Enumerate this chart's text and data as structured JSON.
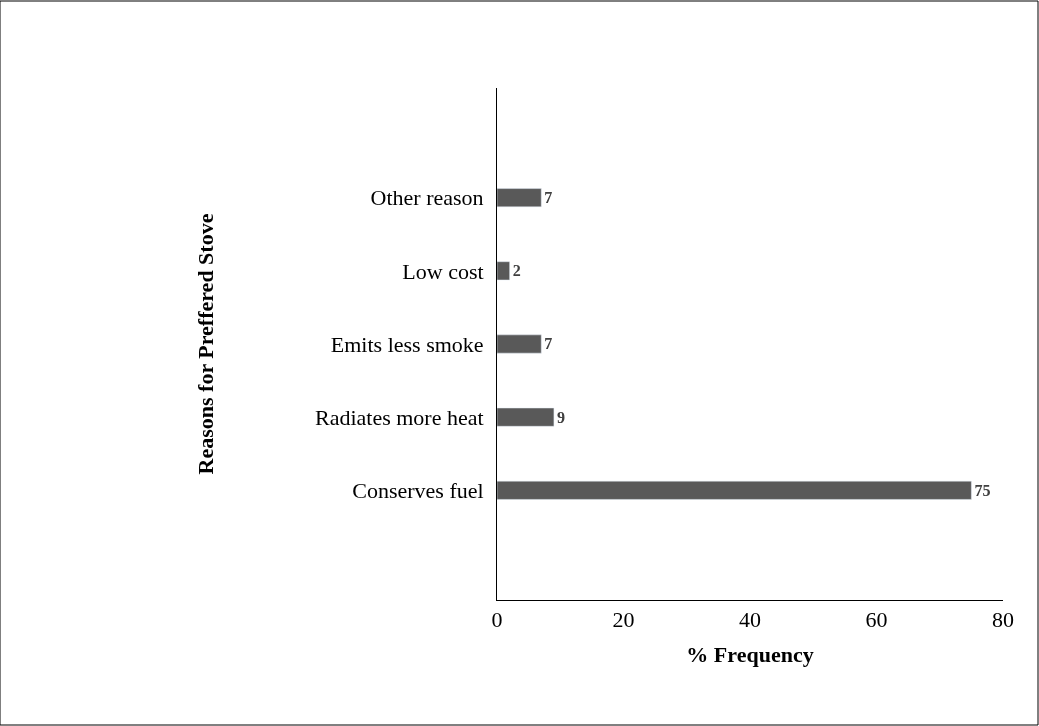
{
  "chart_data": {
    "type": "bar",
    "orientation": "horizontal",
    "xlabel": "% Frequency",
    "ylabel": "Reasons for Preffered Stove",
    "categories": [
      "Other reason",
      "Low cost",
      "Emits less smoke",
      "Radiates more heat",
      "Conserves fuel"
    ],
    "values": [
      7,
      2,
      7,
      9,
      75
    ],
    "color": "#595959",
    "data_labels": true,
    "xlim": [
      0,
      80
    ],
    "xticks": [
      0,
      20,
      40,
      60,
      80
    ]
  }
}
